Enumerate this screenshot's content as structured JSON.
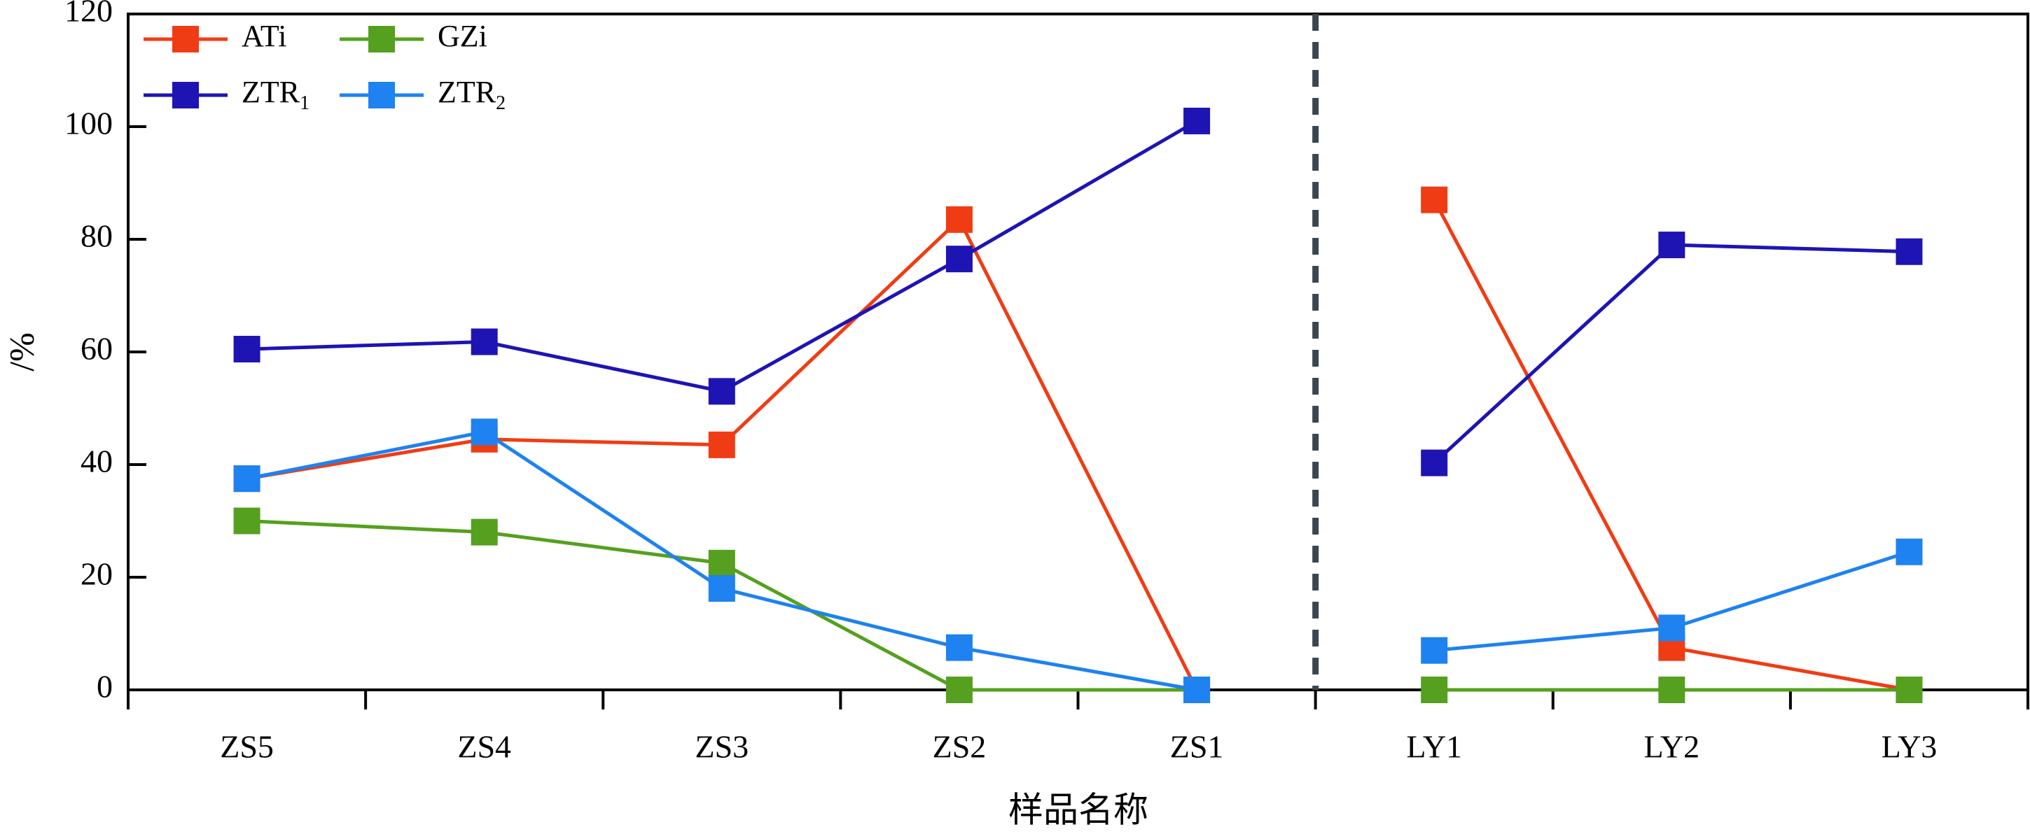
{
  "chart_data": {
    "type": "line",
    "title": "",
    "xlabel": "样品名称",
    "ylabel": "/%",
    "ylim": [
      0,
      120
    ],
    "yticks": [
      0,
      20,
      40,
      60,
      80,
      100,
      120
    ],
    "categories": [
      "ZS5",
      "ZS4",
      "ZS3",
      "ZS2",
      "ZS1",
      "LY1",
      "LY2",
      "LY3"
    ],
    "divider_after_category": "ZS1",
    "legend_position": "top-left",
    "series": [
      {
        "name": "ATi",
        "legend_main": "ATi",
        "legend_sub": "",
        "color": "#f03c14",
        "values": [
          37.5,
          44.5,
          43.5,
          83.5,
          0,
          87.0,
          7.5,
          0
        ]
      },
      {
        "name": "GZi",
        "legend_main": "GZi",
        "legend_sub": "",
        "color": "#55a01e",
        "values": [
          30.0,
          28.0,
          22.5,
          0,
          0,
          0,
          0,
          0
        ]
      },
      {
        "name": "ZTR1",
        "legend_main": "ZTR",
        "legend_sub": "1",
        "color": "#1e14b4",
        "values": [
          60.5,
          61.8,
          53.0,
          76.5,
          101.0,
          40.3,
          79.0,
          77.8
        ]
      },
      {
        "name": "ZTR2",
        "legend_main": "ZTR",
        "legend_sub": "2",
        "color": "#1e82f0",
        "values": [
          37.5,
          45.8,
          18.0,
          7.5,
          0,
          7.0,
          11.0,
          24.5
        ]
      }
    ]
  }
}
